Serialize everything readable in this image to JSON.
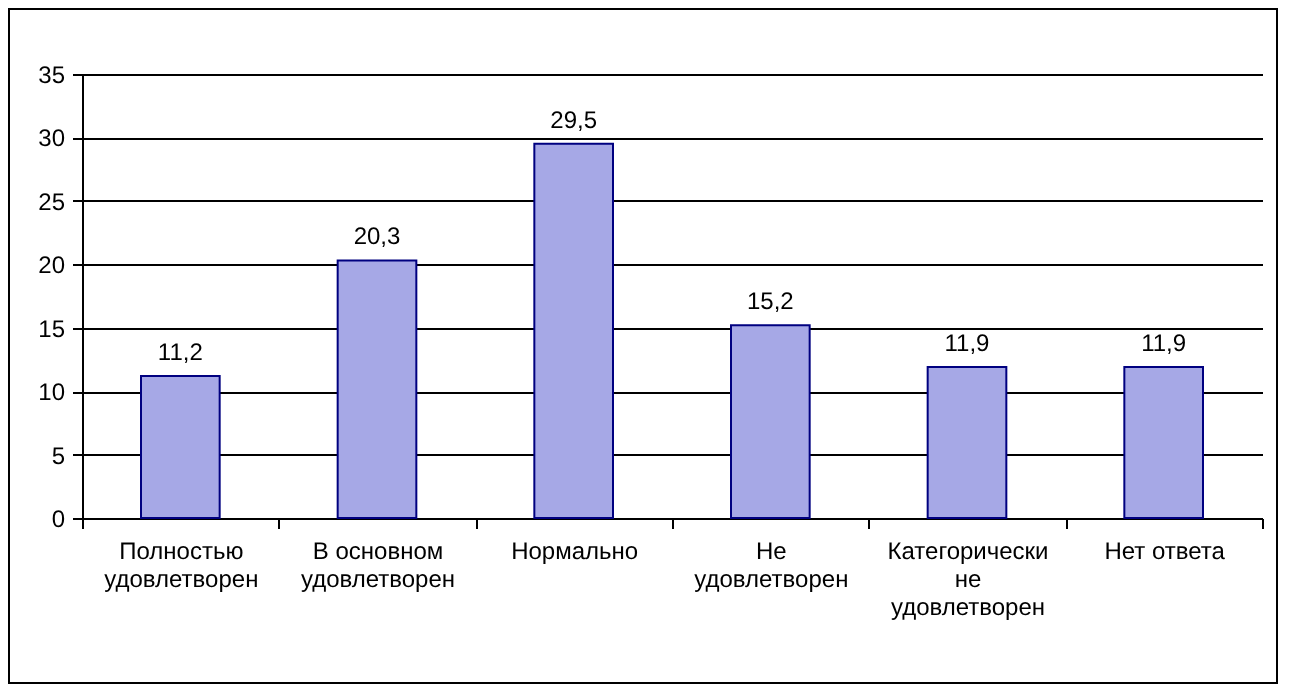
{
  "chart_data": {
    "type": "bar",
    "categories": [
      "Полностью удовлетворен",
      "В основном удовлетворен",
      "Нормально",
      "Не удовлетворен",
      "Категорически не удовлетворен",
      "Нет ответа"
    ],
    "values": [
      11.2,
      20.3,
      29.5,
      15.2,
      11.9,
      11.9
    ],
    "color": "#a6a8e6",
    "ylim": [
      0,
      35
    ],
    "yticks": [
      0,
      5,
      10,
      15,
      20,
      25,
      30,
      35
    ],
    "value_labels": [
      "11,2",
      "20,3",
      "29,5",
      "15,2",
      "11,9",
      "11,9"
    ],
    "grid": "y"
  }
}
